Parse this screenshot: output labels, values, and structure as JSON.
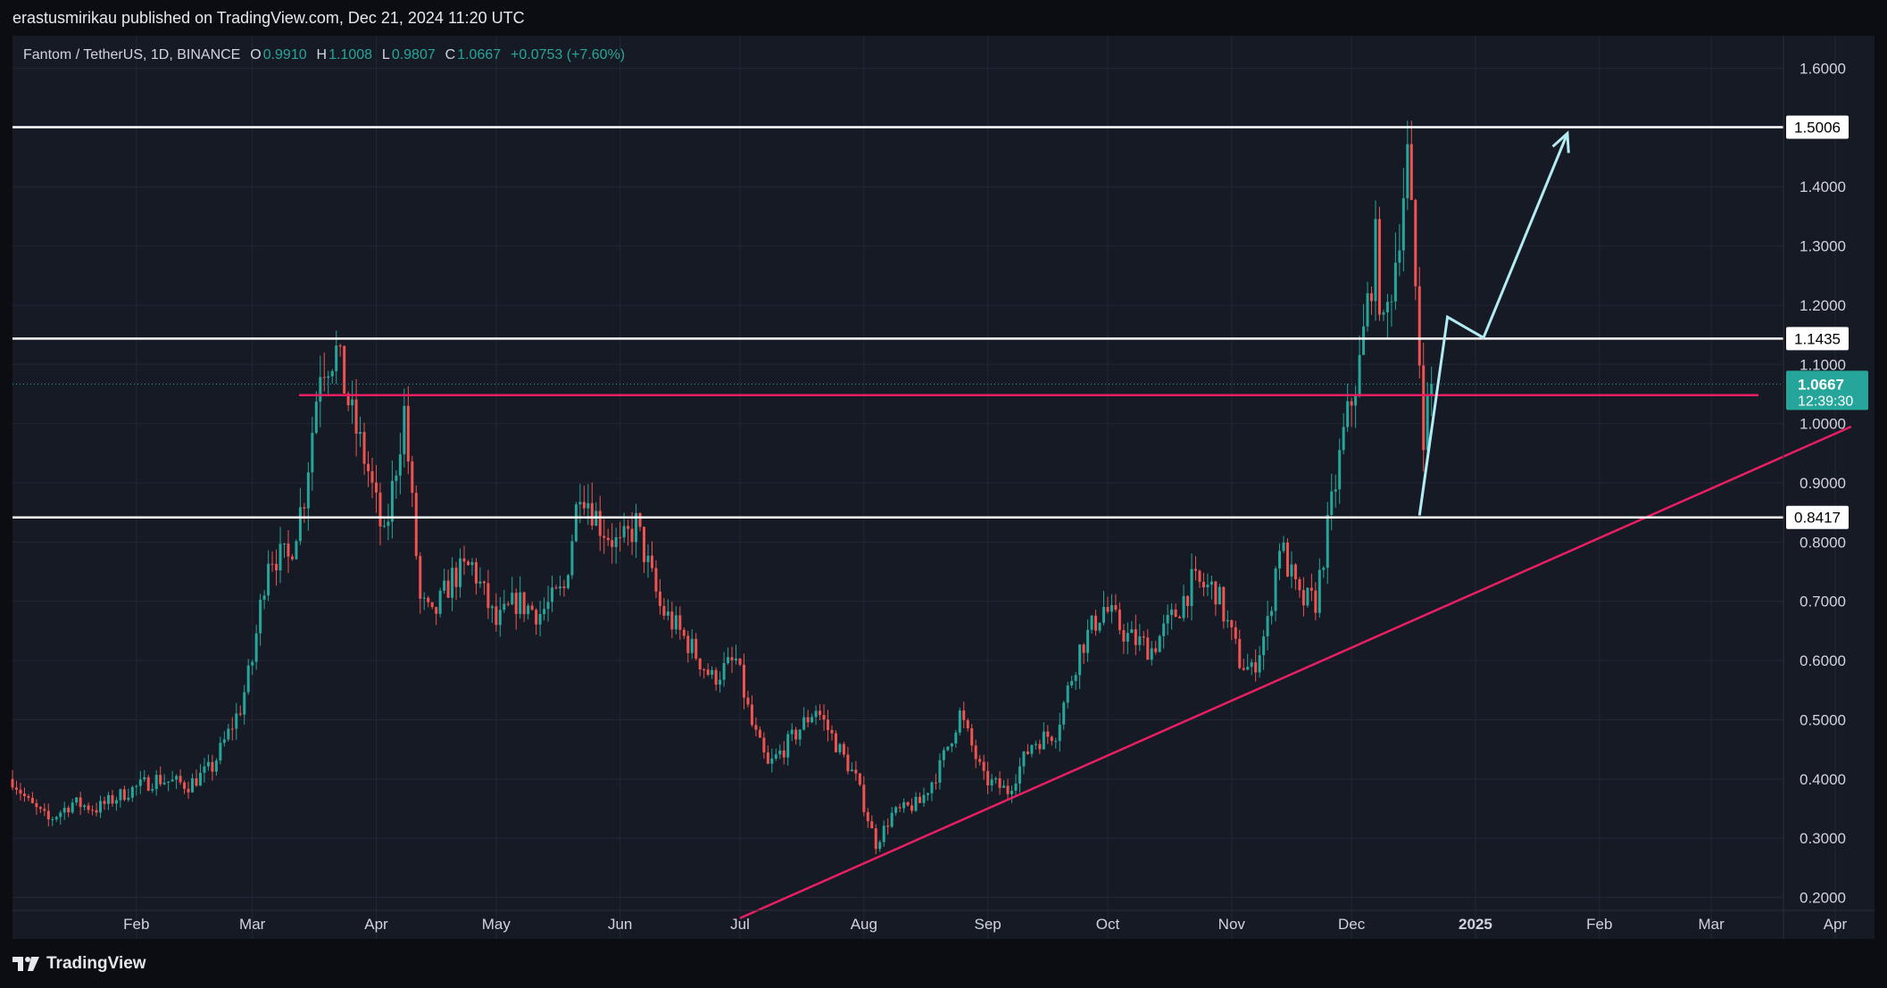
{
  "header": {
    "published_by": "erastusmirikau published on TradingView.com, Dec 21, 2024 11:20 UTC"
  },
  "legend": {
    "symbol": "Fantom / TetherUS, 1D, BINANCE",
    "open_label": "O",
    "open": "0.9910",
    "high_label": "H",
    "high": "1.1008",
    "low_label": "L",
    "low": "0.9807",
    "close_label": "C",
    "close": "1.0667",
    "change": "+0.0753 (+7.60%)"
  },
  "footer": {
    "brand": "TradingView"
  },
  "colors": {
    "background": "#161a25",
    "outer": "#0b0d12",
    "grid": "#232734",
    "up": "#26a69a",
    "down": "#ef5350",
    "support": "#ffffff",
    "trendline": "#e91e63",
    "projection": "#b2ebf2"
  },
  "chart_data": {
    "type": "candlestick",
    "y_axis": {
      "ylim": [
        0.13,
        1.655
      ],
      "ticks": [
        "1.6000",
        "1.4000",
        "1.3000",
        "1.2000",
        "1.1000",
        "1.0000",
        "0.9000",
        "0.8000",
        "0.7000",
        "0.6000",
        "0.5000",
        "0.4000",
        "0.3000",
        "0.2000"
      ]
    },
    "x_axis": {
      "ticks": [
        "Feb",
        "Mar",
        "Apr",
        "May",
        "Jun",
        "Jul",
        "Aug",
        "Sep",
        "Oct",
        "Nov",
        "Dec",
        "2025",
        "Feb",
        "Mar",
        "Apr"
      ]
    },
    "horizontal_levels": [
      {
        "price": 1.5006,
        "label": "1.5006",
        "color": "#ffffff"
      },
      {
        "price": 1.1435,
        "label": "1.1435",
        "color": "#ffffff"
      },
      {
        "price": 0.8417,
        "label": "0.8417",
        "color": "#ffffff"
      },
      {
        "price": 1.048,
        "label": "",
        "color": "#e91e63"
      }
    ],
    "last_price": {
      "value": "1.0667",
      "countdown": "12:39:30"
    },
    "trendline": {
      "from": {
        "date": "2024-07-01",
        "price": 0.165
      },
      "to": {
        "date": "2025-04-05",
        "price": 0.995
      }
    },
    "projection_path": [
      {
        "date": "2024-12-18",
        "price": 0.845
      },
      {
        "date": "2024-12-25",
        "price": 1.18
      },
      {
        "date": "2025-01-03",
        "price": 1.145
      },
      {
        "date": "2025-01-24",
        "price": 1.49
      }
    ],
    "price_path": [
      [
        "2024-01-01",
        0.4
      ],
      [
        "2024-01-05",
        0.36
      ],
      [
        "2024-01-10",
        0.33
      ],
      [
        "2024-01-16",
        0.36
      ],
      [
        "2024-01-22",
        0.35
      ],
      [
        "2024-01-30",
        0.38
      ],
      [
        "2024-02-06",
        0.4
      ],
      [
        "2024-02-14",
        0.39
      ],
      [
        "2024-02-20",
        0.42
      ],
      [
        "2024-02-27",
        0.52
      ],
      [
        "2024-03-01",
        0.6
      ],
      [
        "2024-03-05",
        0.78
      ],
      [
        "2024-03-10",
        0.77
      ],
      [
        "2024-03-14",
        0.88
      ],
      [
        "2024-03-18",
        1.1
      ],
      [
        "2024-03-22",
        1.12
      ],
      [
        "2024-03-26",
        1.01
      ],
      [
        "2024-03-30",
        0.92
      ],
      [
        "2024-04-03",
        0.8
      ],
      [
        "2024-04-08",
        1.02
      ],
      [
        "2024-04-12",
        0.7
      ],
      [
        "2024-04-15",
        0.67
      ],
      [
        "2024-04-20",
        0.74
      ],
      [
        "2024-04-25",
        0.76
      ],
      [
        "2024-05-01",
        0.66
      ],
      [
        "2024-05-06",
        0.7
      ],
      [
        "2024-05-12",
        0.68
      ],
      [
        "2024-05-18",
        0.72
      ],
      [
        "2024-05-22",
        0.9
      ],
      [
        "2024-05-27",
        0.83
      ],
      [
        "2024-06-01",
        0.79
      ],
      [
        "2024-06-05",
        0.83
      ],
      [
        "2024-06-11",
        0.69
      ],
      [
        "2024-06-18",
        0.63
      ],
      [
        "2024-06-24",
        0.57
      ],
      [
        "2024-06-30",
        0.6
      ],
      [
        "2024-07-04",
        0.49
      ],
      [
        "2024-07-08",
        0.42
      ],
      [
        "2024-07-13",
        0.46
      ],
      [
        "2024-07-20",
        0.52
      ],
      [
        "2024-07-25",
        0.46
      ],
      [
        "2024-07-30",
        0.4
      ],
      [
        "2024-08-04",
        0.29
      ],
      [
        "2024-08-08",
        0.34
      ],
      [
        "2024-08-15",
        0.36
      ],
      [
        "2024-08-20",
        0.42
      ],
      [
        "2024-08-25",
        0.51
      ],
      [
        "2024-08-31",
        0.4
      ],
      [
        "2024-09-06",
        0.38
      ],
      [
        "2024-09-12",
        0.46
      ],
      [
        "2024-09-18",
        0.48
      ],
      [
        "2024-09-24",
        0.62
      ],
      [
        "2024-09-30",
        0.69
      ],
      [
        "2024-10-06",
        0.64
      ],
      [
        "2024-10-12",
        0.62
      ],
      [
        "2024-10-18",
        0.68
      ],
      [
        "2024-10-22",
        0.73
      ],
      [
        "2024-10-28",
        0.72
      ],
      [
        "2024-11-03",
        0.6
      ],
      [
        "2024-11-06",
        0.58
      ],
      [
        "2024-11-10",
        0.66
      ],
      [
        "2024-11-13",
        0.8
      ],
      [
        "2024-11-18",
        0.7
      ],
      [
        "2024-11-22",
        0.7
      ],
      [
        "2024-11-26",
        0.86
      ],
      [
        "2024-11-29",
        0.98
      ],
      [
        "2024-12-03",
        1.1
      ],
      [
        "2024-12-07",
        1.3
      ],
      [
        "2024-12-09",
        1.15
      ],
      [
        "2024-12-12",
        1.28
      ],
      [
        "2024-12-15",
        1.45
      ],
      [
        "2024-12-17",
        1.23
      ],
      [
        "2024-12-19",
        0.99
      ],
      [
        "2024-12-21",
        1.0667
      ]
    ]
  }
}
